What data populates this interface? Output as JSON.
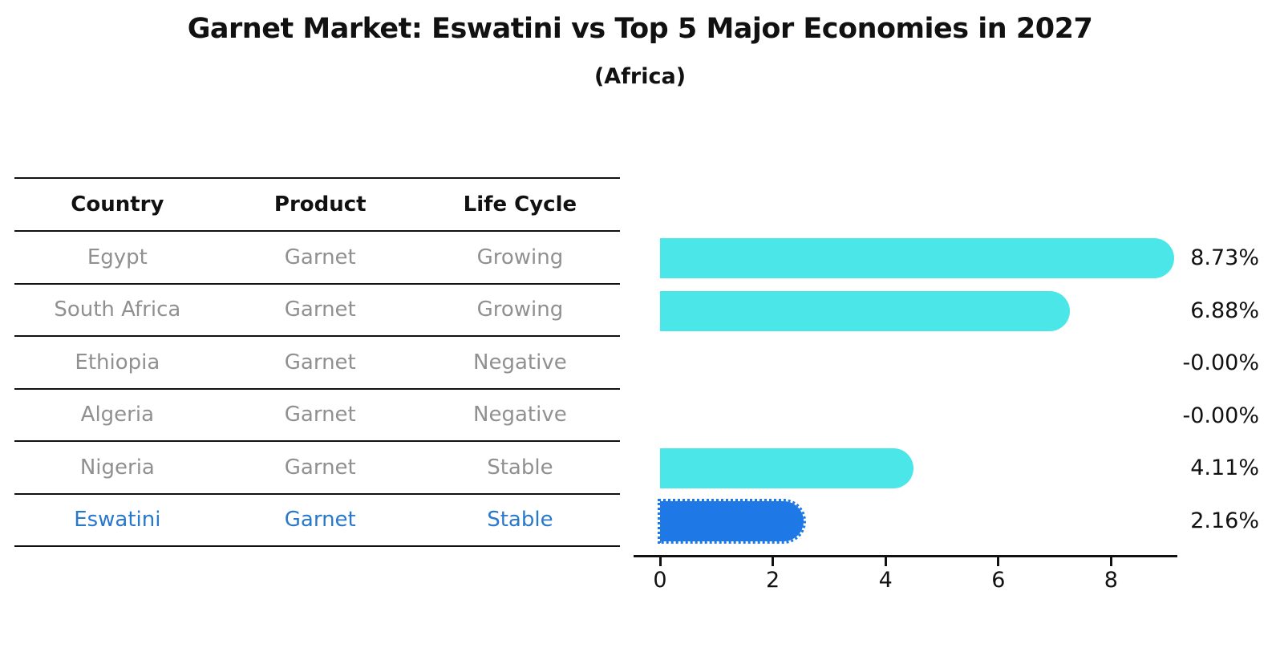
{
  "title": "Garnet Market: Eswatini vs Top 5 Major Economies in 2027",
  "subtitle": "(Africa)",
  "table": {
    "headers": [
      "Country",
      "Product",
      "Life Cycle"
    ],
    "rows": [
      {
        "country": "Egypt",
        "product": "Garnet",
        "life_cycle": "Growing",
        "highlight": false
      },
      {
        "country": "South Africa",
        "product": "Garnet",
        "life_cycle": "Growing",
        "highlight": false
      },
      {
        "country": "Ethiopia",
        "product": "Garnet",
        "life_cycle": "Negative",
        "highlight": false
      },
      {
        "country": "Algeria",
        "product": "Garnet",
        "life_cycle": "Negative",
        "highlight": false
      },
      {
        "country": "Nigeria",
        "product": "Garnet",
        "life_cycle": "Stable",
        "highlight": false
      },
      {
        "country": "Eswatini",
        "product": "Garnet",
        "life_cycle": "Stable",
        "highlight": true
      }
    ]
  },
  "chart_data": {
    "type": "bar",
    "orientation": "horizontal",
    "title": "Garnet Market: Eswatini vs Top 5 Major Economies in 2027",
    "subtitle": "(Africa)",
    "categories": [
      "Egypt",
      "South Africa",
      "Ethiopia",
      "Algeria",
      "Nigeria",
      "Eswatini"
    ],
    "values": [
      8.73,
      6.88,
      -0.0,
      -0.0,
      4.11,
      2.16
    ],
    "value_labels": [
      "8.73%",
      "6.88%",
      "-0.00%",
      "-0.00%",
      "4.11%",
      "2.16%"
    ],
    "xlim": [
      0,
      9.2
    ],
    "xticks": [
      0,
      2,
      4,
      6,
      8
    ],
    "grid": false,
    "legend": false,
    "bar_color": "#4be6e8",
    "highlight_color": "#1e78e6",
    "highlight_index": 5,
    "highlight_border_style": "dotted",
    "highlight_text_color": "#2878cc"
  }
}
